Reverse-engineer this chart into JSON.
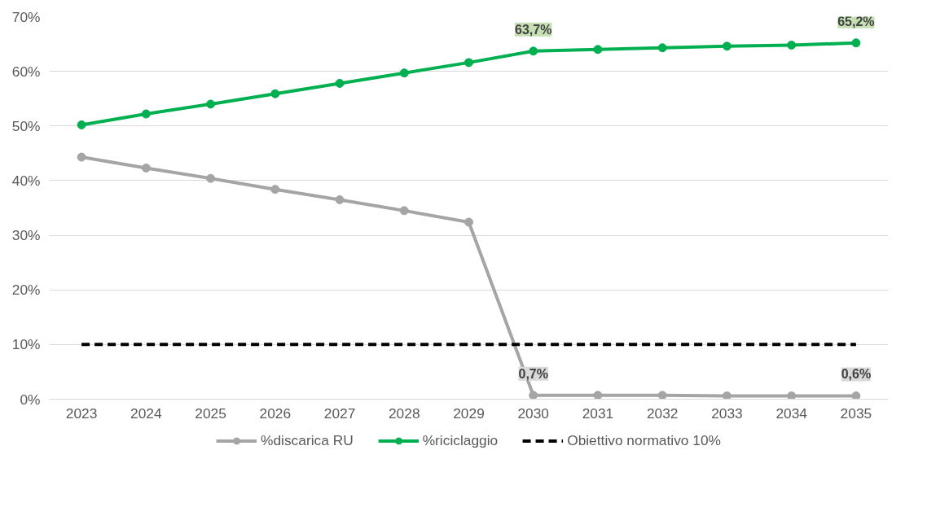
{
  "chart_data": {
    "type": "line",
    "categories": [
      "2023",
      "2024",
      "2025",
      "2026",
      "2027",
      "2028",
      "2029",
      "2030",
      "2031",
      "2032",
      "2033",
      "2034",
      "2035"
    ],
    "series": [
      {
        "name": "%discarica RU",
        "color": "#a5a5a5",
        "marker": "circle",
        "line_style": "solid",
        "values": [
          44.3,
          42.3,
          40.4,
          38.4,
          36.5,
          34.5,
          32.4,
          0.7,
          0.7,
          0.7,
          0.6,
          0.6,
          0.6
        ],
        "value_labels": [
          null,
          null,
          null,
          null,
          null,
          null,
          null,
          "0,7%",
          null,
          null,
          null,
          null,
          "0,6%"
        ]
      },
      {
        "name": "%riciclaggio",
        "color": "#00b050",
        "marker": "circle",
        "line_style": "solid",
        "values": [
          50.2,
          52.2,
          54.0,
          55.9,
          57.8,
          59.7,
          61.6,
          63.7,
          64.0,
          64.3,
          64.6,
          64.8,
          65.2
        ],
        "value_labels": [
          null,
          null,
          null,
          null,
          null,
          null,
          null,
          "63,7%",
          null,
          null,
          null,
          null,
          "65,2%"
        ]
      },
      {
        "name": "Obiettivo normativo 10%",
        "color": "#000000",
        "marker": "none",
        "line_style": "dashed",
        "values": [
          10,
          10,
          10,
          10,
          10,
          10,
          10,
          10,
          10,
          10,
          10,
          10,
          10
        ]
      }
    ],
    "ylim": [
      0,
      70
    ],
    "yticks": [
      {
        "value": 0,
        "label": "0%"
      },
      {
        "value": 10,
        "label": "10%"
      },
      {
        "value": 20,
        "label": "20%"
      },
      {
        "value": 30,
        "label": "30%"
      },
      {
        "value": 40,
        "label": "40%"
      },
      {
        "value": 50,
        "label": "50%"
      },
      {
        "value": 60,
        "label": "60%"
      },
      {
        "value": 70,
        "label": "70%"
      }
    ],
    "grid": "y",
    "legend": "bottom"
  }
}
